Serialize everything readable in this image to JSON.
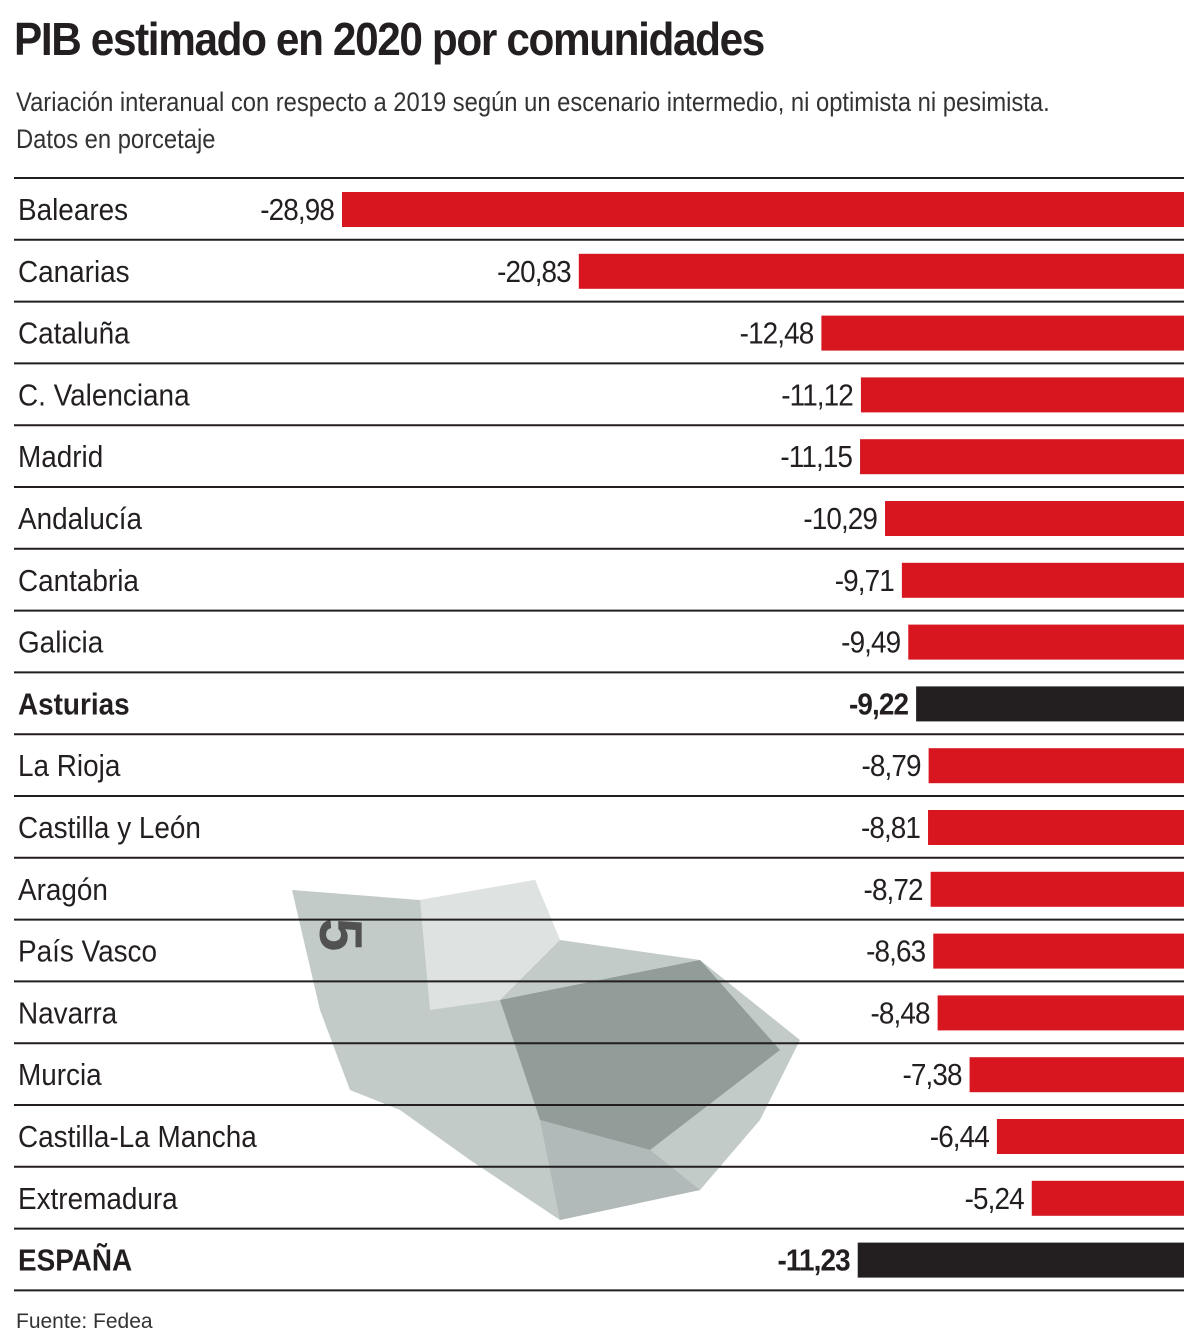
{
  "chart_data": {
    "type": "bar",
    "orientation": "horizontal",
    "title": "PIB estimado en 2020 por comunidades",
    "subtitle": "Variación interanual con respecto a 2019 según un escenario intermedio, ni optimista ni pesimista. Datos en porcetaje",
    "categories": [
      "Baleares",
      "Canarias",
      "Cataluña",
      "C. Valenciana",
      "Madrid",
      "Andalucía",
      "Cantabria",
      "Galicia",
      "Asturias",
      "La Rioja",
      "Castilla y León",
      "Aragón",
      "País Vasco",
      "Navarra",
      "Murcia",
      "Castilla-La Mancha",
      "Extremadura",
      "ESPAÑA"
    ],
    "values": [
      -28.98,
      -20.83,
      -12.48,
      -11.12,
      -11.15,
      -10.29,
      -9.71,
      -9.49,
      -9.22,
      -8.79,
      -8.81,
      -8.72,
      -8.63,
      -8.48,
      -7.38,
      -6.44,
      -5.24,
      -11.23
    ],
    "value_labels": [
      "-28,98",
      "-20,83",
      "-12,48",
      "-11,12",
      "-11,15",
      "-10,29",
      "-9,71",
      "-9,49",
      "-9,22",
      "-8,79",
      "-8,81",
      "-8,72",
      "-8,63",
      "-8,48",
      "-7,38",
      "-6,44",
      "-5,24",
      "-11,23"
    ],
    "highlighted": [
      "Asturias",
      "ESPAÑA"
    ],
    "xlim": [
      -29,
      0
    ],
    "grid": false,
    "colors": {
      "default": "#d7161f",
      "highlight": "#231f20",
      "rule": "#231f20"
    },
    "source": "Fuente: Fedea"
  },
  "decoration": {
    "image": "crumpled-5-euro-banknote"
  }
}
